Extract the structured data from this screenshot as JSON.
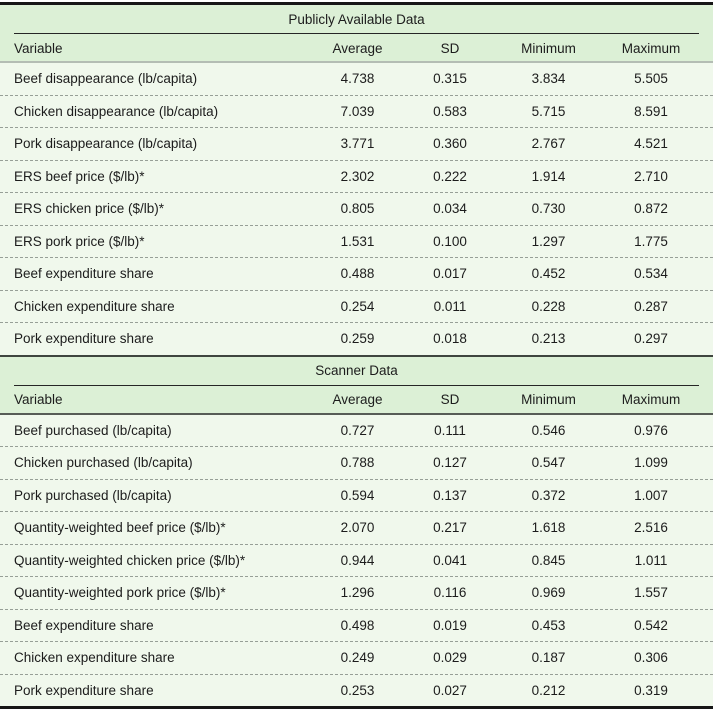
{
  "table": {
    "columns": {
      "variable": "Variable",
      "average": "Average",
      "sd": "SD",
      "minimum": "Minimum",
      "maximum": "Maximum"
    },
    "sections": [
      {
        "title": "Publicly Available Data",
        "rows": [
          [
            "Beef disappearance (lb/capita)",
            "4.738",
            "0.315",
            "3.834",
            "5.505"
          ],
          [
            "Chicken disappearance (lb/capita)",
            "7.039",
            "0.583",
            "5.715",
            "8.591"
          ],
          [
            "Pork disappearance (lb/capita)",
            "3.771",
            "0.360",
            "2.767",
            "4.521"
          ],
          [
            "ERS beef price ($/lb)*",
            "2.302",
            "0.222",
            "1.914",
            "2.710"
          ],
          [
            "ERS chicken price ($/lb)*",
            "0.805",
            "0.034",
            "0.730",
            "0.872"
          ],
          [
            "ERS pork price ($/lb)*",
            "1.531",
            "0.100",
            "1.297",
            "1.775"
          ],
          [
            "Beef expenditure share",
            "0.488",
            "0.017",
            "0.452",
            "0.534"
          ],
          [
            "Chicken expenditure share",
            "0.254",
            "0.011",
            "0.228",
            "0.287"
          ],
          [
            "Pork expenditure share",
            "0.259",
            "0.018",
            "0.213",
            "0.297"
          ]
        ]
      },
      {
        "title": "Scanner Data",
        "rows": [
          [
            "Beef purchased (lb/capita)",
            "0.727",
            "0.111",
            "0.546",
            "0.976"
          ],
          [
            "Chicken purchased (lb/capita)",
            "0.788",
            "0.127",
            "0.547",
            "1.099"
          ],
          [
            "Pork purchased (lb/capita)",
            "0.594",
            "0.137",
            "0.372",
            "1.007"
          ],
          [
            "Quantity-weighted beef price ($/lb)*",
            "2.070",
            "0.217",
            "1.618",
            "2.516"
          ],
          [
            "Quantity-weighted chicken price ($/lb)*",
            "0.944",
            "0.041",
            "0.845",
            "1.011"
          ],
          [
            "Quantity-weighted pork price ($/lb)*",
            "1.296",
            "0.116",
            "0.969",
            "1.557"
          ],
          [
            "Beef expenditure share",
            "0.498",
            "0.019",
            "0.453",
            "0.542"
          ],
          [
            "Chicken expenditure share",
            "0.249",
            "0.029",
            "0.187",
            "0.306"
          ],
          [
            "Pork expenditure share",
            "0.253",
            "0.027",
            "0.212",
            "0.319"
          ]
        ]
      }
    ],
    "colors": {
      "band_green": "#dcf0d6",
      "row_green": "#f0f8ec",
      "rule_black": "#161616",
      "dash_gray": "#979f97",
      "text": "#1c1c1c"
    }
  }
}
